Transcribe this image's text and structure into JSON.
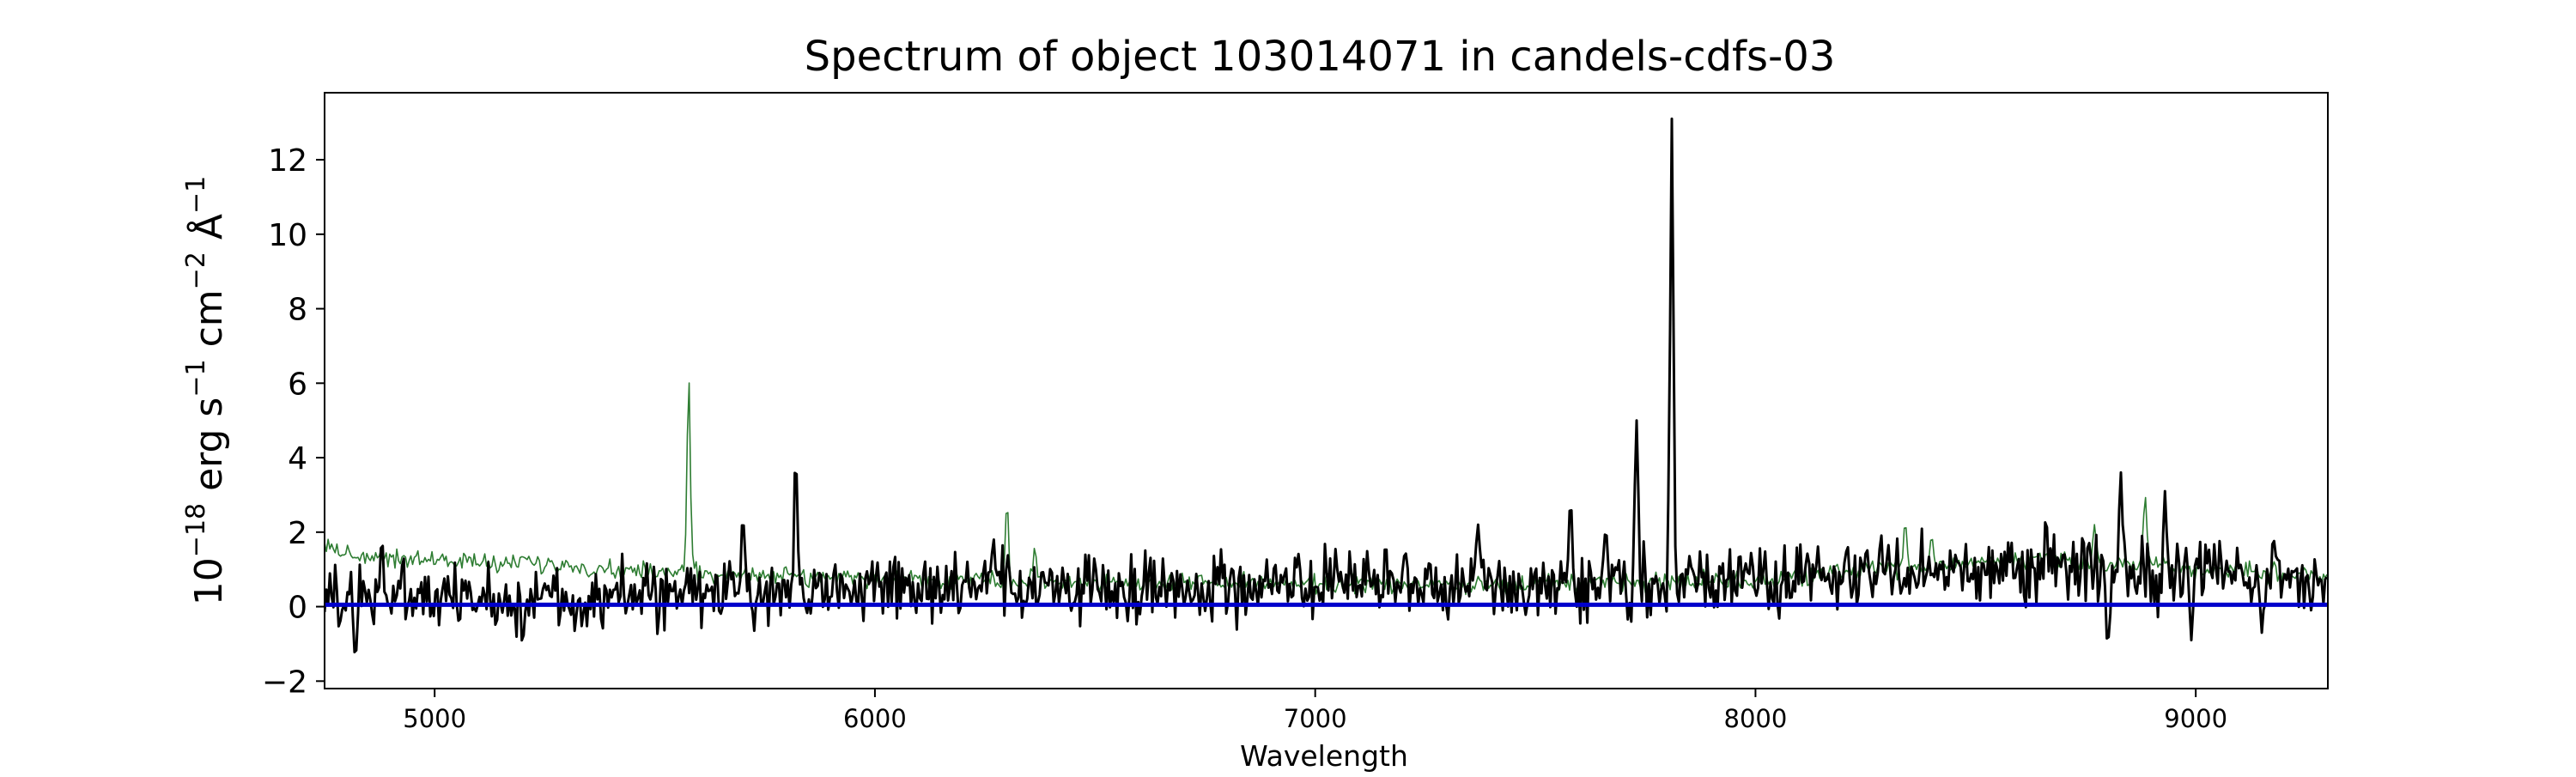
{
  "chart_data": {
    "type": "line",
    "title": "Spectrum of object 103014071 in candels-cdfs-03",
    "xlabel": "Wavelength",
    "ylabel_parts": [
      "10",
      "−18",
      " erg s",
      "−1",
      " cm",
      "−2",
      " Å",
      "−1"
    ],
    "xlim": [
      4750,
      9300
    ],
    "ylim": [
      -2.2,
      13.8
    ],
    "xticks": [
      5000,
      6000,
      7000,
      8000,
      9000
    ],
    "yticks": [
      -2,
      0,
      2,
      4,
      6,
      8,
      10,
      12
    ],
    "grid": false,
    "legend": "none",
    "series": [
      {
        "role": "flux",
        "color": "#000000",
        "noise_amplitude": 0.45,
        "baseline": [
          [
            4750,
            0.3
          ],
          [
            5000,
            0.2
          ],
          [
            5500,
            0.3
          ],
          [
            6000,
            0.5
          ],
          [
            6500,
            0.5
          ],
          [
            7000,
            0.55
          ],
          [
            7500,
            0.6
          ],
          [
            8000,
            0.7
          ],
          [
            8300,
            0.9
          ],
          [
            8700,
            1.1
          ],
          [
            9000,
            0.8
          ],
          [
            9300,
            0.7
          ]
        ],
        "features": [
          [
            4820,
            -1.4
          ],
          [
            4880,
            1.9
          ],
          [
            5200,
            -1.0
          ],
          [
            5700,
            2.5
          ],
          [
            5820,
            4.2
          ],
          [
            6270,
            1.8
          ],
          [
            7370,
            2.2
          ],
          [
            7580,
            3.0
          ],
          [
            7660,
            2.1
          ],
          [
            7730,
            5.0
          ],
          [
            7810,
            13.1
          ],
          [
            8660,
            2.4
          ],
          [
            8800,
            -1.1
          ],
          [
            8830,
            3.6
          ],
          [
            8930,
            3.1
          ],
          [
            8990,
            -0.9
          ],
          [
            9150,
            -0.7
          ]
        ]
      },
      {
        "role": "model",
        "color": "#2e7d32",
        "noise_amplitude": 0.12,
        "baseline": [
          [
            4750,
            1.7
          ],
          [
            4800,
            1.4
          ],
          [
            5000,
            1.25
          ],
          [
            5200,
            1.15
          ],
          [
            5400,
            1.0
          ],
          [
            5600,
            0.9
          ],
          [
            6000,
            0.75
          ],
          [
            6500,
            0.65
          ],
          [
            7000,
            0.6
          ],
          [
            7500,
            0.6
          ],
          [
            8000,
            0.7
          ],
          [
            8300,
            1.0
          ],
          [
            8600,
            1.3
          ],
          [
            8900,
            1.1
          ],
          [
            9300,
            0.8
          ]
        ],
        "features": [
          [
            5577,
            6.2
          ],
          [
            6300,
            2.8
          ],
          [
            6363,
            1.6
          ],
          [
            8340,
            2.3
          ],
          [
            8400,
            1.9
          ],
          [
            8770,
            2.2
          ],
          [
            8885,
            3.0
          ]
        ]
      },
      {
        "role": "error",
        "color": "#0000cc",
        "points": [
          [
            4750,
            0.05
          ],
          [
            9300,
            0.05
          ]
        ]
      }
    ]
  }
}
